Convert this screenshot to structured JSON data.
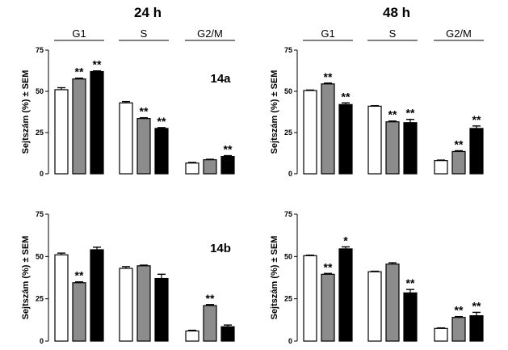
{
  "columns": [
    "24 h",
    "48 h"
  ],
  "chart_data": [
    {
      "type": "bar",
      "column": "24 h",
      "panel_label": "14a",
      "groups": [
        "G1",
        "S",
        "G2/M"
      ],
      "ylabel": "Sejtszám (%) ± SEM",
      "yticks": [
        0,
        25,
        50,
        75
      ],
      "ylim": [
        0,
        75
      ],
      "bar_colors": [
        "#ffffff",
        "#8c8c8c",
        "#000000"
      ],
      "series": [
        {
          "values": [
            51,
            43,
            6.5
          ],
          "errors": [
            1.2,
            0.8,
            0.4
          ],
          "sig": [
            "",
            "",
            ""
          ]
        },
        {
          "values": [
            57.5,
            33.5,
            8.5
          ],
          "errors": [
            0.5,
            0.5,
            0.3
          ],
          "sig": [
            "**",
            "**",
            ""
          ]
        },
        {
          "values": [
            62,
            27.5,
            10.5
          ],
          "errors": [
            0.4,
            0.5,
            0.5
          ],
          "sig": [
            "**",
            "**",
            "**"
          ]
        }
      ]
    },
    {
      "type": "bar",
      "column": "48 h",
      "panel_label": "",
      "groups": [
        "G1",
        "S",
        "G2/M"
      ],
      "ylabel": "Sejtszám (%) ± SEM",
      "yticks": [
        0,
        25,
        50,
        75
      ],
      "ylim": [
        0,
        75
      ],
      "bar_colors": [
        "#ffffff",
        "#8c8c8c",
        "#000000"
      ],
      "series": [
        {
          "values": [
            50.5,
            41,
            8
          ],
          "errors": [
            0.3,
            0.3,
            0.3
          ],
          "sig": [
            "",
            "",
            ""
          ]
        },
        {
          "values": [
            54.5,
            31.5,
            13.5
          ],
          "errors": [
            0.5,
            0.5,
            0.5
          ],
          "sig": [
            "**",
            "**",
            "**"
          ]
        },
        {
          "values": [
            42,
            31,
            27.5
          ],
          "errors": [
            1,
            2,
            1.5
          ],
          "sig": [
            "**",
            "**",
            "**"
          ]
        }
      ]
    },
    {
      "type": "bar",
      "column": "24 h",
      "panel_label": "14b",
      "groups": [
        "G1",
        "S",
        "G2/M"
      ],
      "ylabel": "Sejtszám (%) ± SEM",
      "yticks": [
        0,
        25,
        50,
        75
      ],
      "ylim": [
        0,
        75
      ],
      "bar_colors": [
        "#ffffff",
        "#8c8c8c",
        "#000000"
      ],
      "series": [
        {
          "values": [
            51,
            43,
            6
          ],
          "errors": [
            1,
            1,
            0.4
          ],
          "sig": [
            "",
            "",
            ""
          ]
        },
        {
          "values": [
            34.5,
            44.5,
            21
          ],
          "errors": [
            0.5,
            0.4,
            0.6
          ],
          "sig": [
            "**",
            "",
            "**"
          ]
        },
        {
          "values": [
            54,
            37,
            8.5
          ],
          "errors": [
            1.5,
            2.5,
            1
          ],
          "sig": [
            "",
            "",
            ""
          ]
        }
      ]
    },
    {
      "type": "bar",
      "column": "48 h",
      "panel_label": "",
      "groups": [
        "G1",
        "S",
        "G2/M"
      ],
      "ylabel": "Sejtszám (%) ± SEM",
      "yticks": [
        0,
        25,
        50,
        75
      ],
      "ylim": [
        0,
        75
      ],
      "bar_colors": [
        "#ffffff",
        "#8c8c8c",
        "#000000"
      ],
      "series": [
        {
          "values": [
            50.5,
            41,
            7.5
          ],
          "errors": [
            0.3,
            0.3,
            0.3
          ],
          "sig": [
            "",
            "",
            ""
          ]
        },
        {
          "values": [
            39.5,
            45.5,
            14
          ],
          "errors": [
            0.5,
            0.8,
            0.5
          ],
          "sig": [
            "**",
            "",
            "**"
          ]
        },
        {
          "values": [
            54.5,
            28.5,
            15
          ],
          "errors": [
            1.2,
            2,
            2
          ],
          "sig": [
            "*",
            "**",
            "**"
          ]
        }
      ]
    }
  ]
}
